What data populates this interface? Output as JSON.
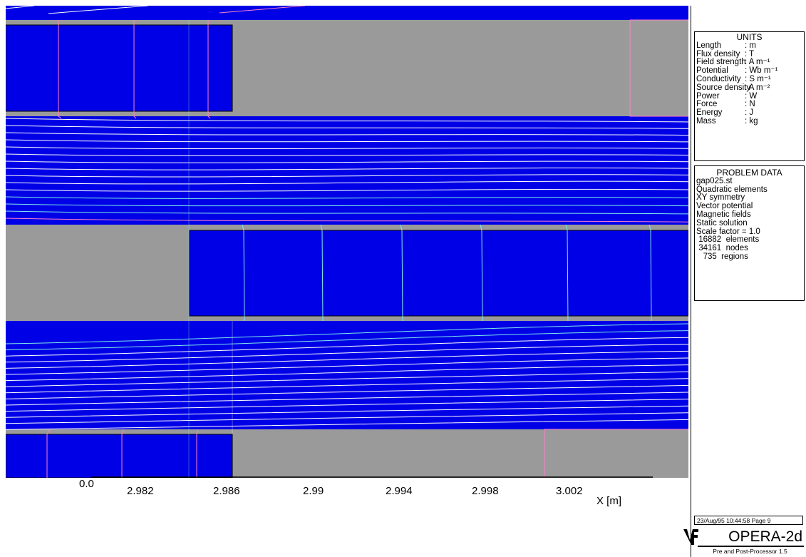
{
  "plot": {
    "x_axis_label": "X [m]",
    "origin_label": "0.0",
    "tick_labels": [
      "2.982",
      "2.986",
      "2.99",
      "2.994",
      "2.998",
      "3.002"
    ],
    "colors": {
      "region_blue": "#0000e6",
      "region_grey": "#9a9a9a",
      "contour_white": "#ffffff",
      "contour_cyan": "#7fe8e8",
      "contour_pink": "#ff80c8"
    }
  },
  "units": {
    "title": "UNITS",
    "rows": [
      {
        "name": "Length",
        "unit": ": m"
      },
      {
        "name": "Flux density",
        "unit": ": T"
      },
      {
        "name": "Field strength",
        "unit": ": A m⁻¹"
      },
      {
        "name": "Potential",
        "unit": ": Wb m⁻¹"
      },
      {
        "name": "Conductivity",
        "unit": ": S m⁻¹"
      },
      {
        "name": "Source density",
        "unit": ": A m⁻²"
      },
      {
        "name": "Power",
        "unit": ": W"
      },
      {
        "name": "Force",
        "unit": ": N"
      },
      {
        "name": "Energy",
        "unit": ": J"
      },
      {
        "name": "Mass",
        "unit": ": kg"
      }
    ]
  },
  "problem": {
    "title": "PROBLEM DATA",
    "lines": [
      "gap025.st",
      "Quadratic elements",
      "XY symmetry",
      "Vector potential",
      "Magnetic fields",
      "Static solution",
      "Scale factor = 1.0",
      " 16882  elements",
      " 34161  nodes",
      "   735  regions"
    ]
  },
  "footer": {
    "page_stamp": "23/Aug/95 10:44:58 Page   9",
    "logo_text": "OPERA-2d",
    "logo_sub": "Pre and Post-Processor 1.5"
  }
}
